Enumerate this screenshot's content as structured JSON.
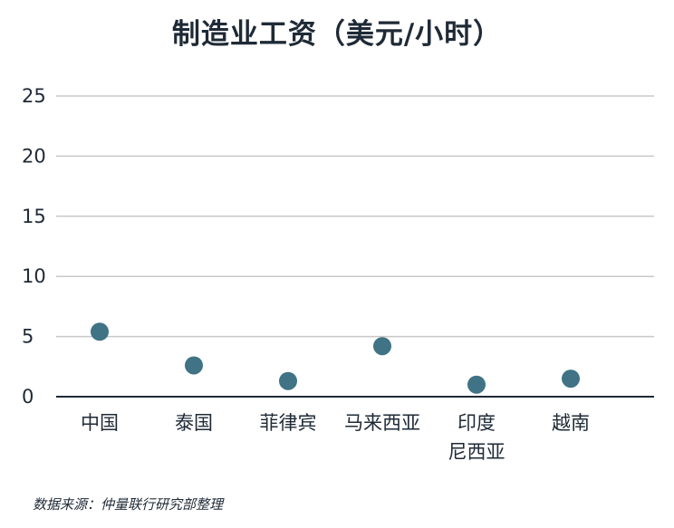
{
  "chart_data": {
    "type": "scatter",
    "title": "制造业工资（美元/小时）",
    "categories": [
      [
        "中国"
      ],
      [
        "泰国"
      ],
      [
        "菲律宾"
      ],
      [
        "马来西亚"
      ],
      [
        "印度",
        "尼西亚"
      ],
      [
        "越南"
      ]
    ],
    "values": [
      5.4,
      2.6,
      1.3,
      4.2,
      1.0,
      1.5
    ],
    "yticks": [
      0,
      5,
      10,
      15,
      20,
      25
    ],
    "ylim": [
      0,
      25
    ],
    "grid": true,
    "point_color": "#3f7385",
    "grid_color": "#c8c8c8",
    "axis_color": "#1f2a36"
  },
  "source": "数据来源：仲量联行研究部整理"
}
